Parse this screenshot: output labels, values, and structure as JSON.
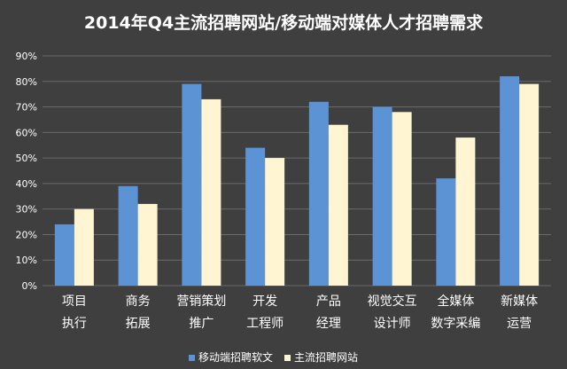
{
  "colors": {
    "background": "#3f3f3f",
    "series_1": "#5b93d5",
    "series_2": "#fff5d2",
    "grid": "#6a6a6a",
    "text": "#ffffff"
  },
  "chart_data": {
    "type": "bar",
    "title": "2014年Q4主流招聘网站/移动端对媒体人才招聘需求",
    "categories": [
      [
        "项目",
        "执行"
      ],
      [
        "商务",
        "拓展"
      ],
      [
        "营销策划",
        "推广"
      ],
      [
        "开发",
        "工程师"
      ],
      [
        "产品",
        "经理"
      ],
      [
        "视觉交互",
        "设计师"
      ],
      [
        "全媒体",
        "数字采编"
      ],
      [
        "新媒体",
        "运营"
      ]
    ],
    "series": [
      {
        "name": "移动端招聘软文",
        "values": [
          24,
          39,
          79,
          54,
          72,
          70,
          42,
          82
        ]
      },
      {
        "name": "主流招聘网站",
        "values": [
          30,
          32,
          73,
          50,
          63,
          68,
          58,
          79
        ]
      }
    ],
    "y_ticks": [
      "0%",
      "10%",
      "20%",
      "30%",
      "40%",
      "50%",
      "60%",
      "70%",
      "80%",
      "90%"
    ],
    "ylim": [
      0,
      90
    ],
    "grid": true,
    "legend_position": "bottom"
  }
}
